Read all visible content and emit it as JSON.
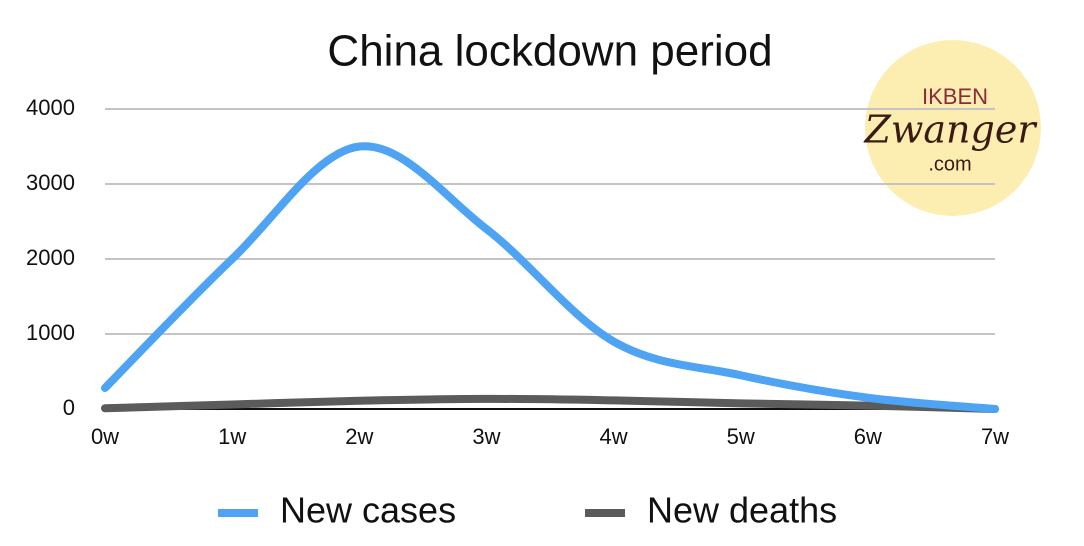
{
  "chart_data": {
    "type": "line",
    "title": "China lockdown period",
    "categories": [
      "0w",
      "1w",
      "2w",
      "3w",
      "4w",
      "5w",
      "6w",
      "7w"
    ],
    "series": [
      {
        "name": "New cases",
        "color": "#4ea3f2",
        "values": [
          280,
          2000,
          3500,
          2400,
          900,
          450,
          150,
          0
        ]
      },
      {
        "name": "New deaths",
        "color": "#5b5b5b",
        "values": [
          10,
          60,
          110,
          135,
          115,
          75,
          45,
          0
        ]
      }
    ],
    "ylim": [
      0,
      4000
    ],
    "yticks": [
      0,
      1000,
      2000,
      3000,
      4000
    ],
    "grid": true,
    "legend": "bottom"
  },
  "logo": {
    "line1": "IKBEN",
    "line2": "Zwanger",
    "line3": ".com"
  }
}
